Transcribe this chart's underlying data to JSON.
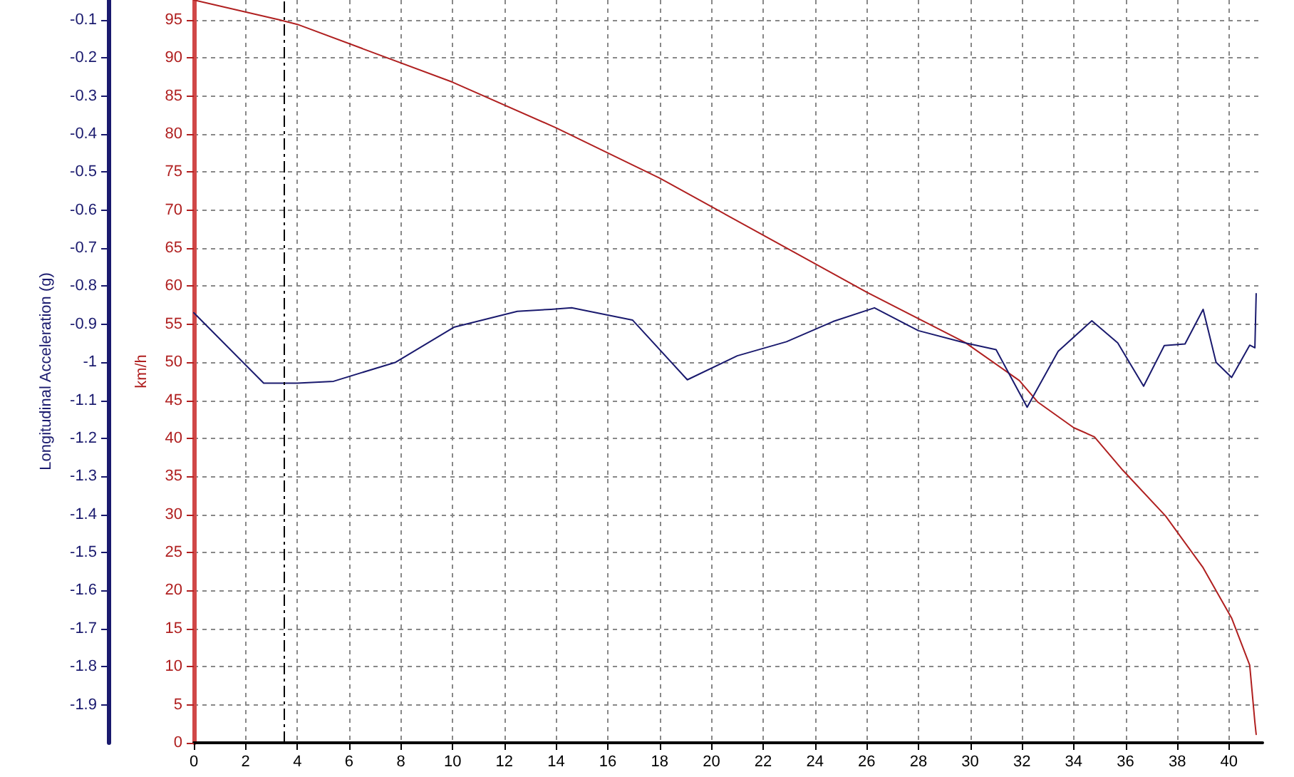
{
  "chart_data": {
    "type": "line",
    "ylabel": "km/h",
    "y2label": "Longitudinal Acceleration (g)",
    "xlim": [
      0,
      41.3
    ],
    "xticks": [
      0,
      2,
      4,
      6,
      8,
      10,
      12,
      14,
      16,
      18,
      20,
      22,
      24,
      26,
      28,
      30,
      32,
      34,
      36,
      38,
      40
    ],
    "ylim": [
      0,
      97.6
    ],
    "yticks": [
      0,
      5,
      10,
      15,
      20,
      25,
      30,
      35,
      40,
      45,
      50,
      55,
      60,
      65,
      70,
      75,
      80,
      85,
      90,
      95
    ],
    "y2lim": [
      -2.0,
      -0.048
    ],
    "y2ticks": [
      -1.9,
      -1.8,
      -1.7,
      -1.6,
      -1.5,
      -1.4,
      -1.3,
      -1.2,
      -1.1,
      -1,
      -0.9,
      -0.8,
      -0.7,
      -0.6,
      -0.5,
      -0.4,
      -0.3,
      -0.2,
      -0.1
    ],
    "grid": true,
    "marker": "none",
    "line_style": "solid",
    "ref_lines": [
      {
        "axis": "x",
        "value": 3.5,
        "color": "#000000",
        "line_style": "dashed"
      }
    ],
    "series": [
      {
        "color": "#b02020",
        "x": [
          0,
          3.3,
          4,
          10,
          14,
          18,
          22,
          26,
          29.8,
          31.9,
          32.6,
          34.0,
          34.8,
          35.9,
          37.55,
          39.0,
          40.1,
          40.8,
          41.0,
          41.05
        ],
        "values": [
          97.6,
          95,
          94.4,
          86.8,
          80.8,
          74.2,
          66.7,
          59.2,
          52.6,
          47.6,
          44.8,
          41.4,
          40.2,
          35.8,
          29.8,
          23.0,
          16.4,
          10.2,
          2.7,
          1.1
        ]
      },
      {
        "color": "#1a1a6e",
        "axis": "y2",
        "x": [
          0,
          2.7,
          4.0,
          5.4,
          7.8,
          10.05,
          12.5,
          13.8,
          14.6,
          16.95,
          19.07,
          21.0,
          22.9,
          24.7,
          26.3,
          28.0,
          29.8,
          31.0,
          32.2,
          33.4,
          34.7,
          35.7,
          36.7,
          37.5,
          38.3,
          39.0,
          39.5,
          40.1,
          40.8,
          41.0,
          41.05
        ],
        "values": [
          -0.87,
          -1.055,
          -1.055,
          -1.05,
          -1.0,
          -0.908,
          -0.866,
          -0.861,
          -0.857,
          -0.889,
          -1.046,
          -0.983,
          -0.946,
          -0.893,
          -0.857,
          -0.917,
          -0.949,
          -0.967,
          -1.118,
          -0.971,
          -0.891,
          -0.949,
          -1.063,
          -0.956,
          -0.952,
          -0.861,
          -1.0,
          -1.04,
          -0.955,
          -0.962,
          -0.82
        ]
      }
    ]
  }
}
